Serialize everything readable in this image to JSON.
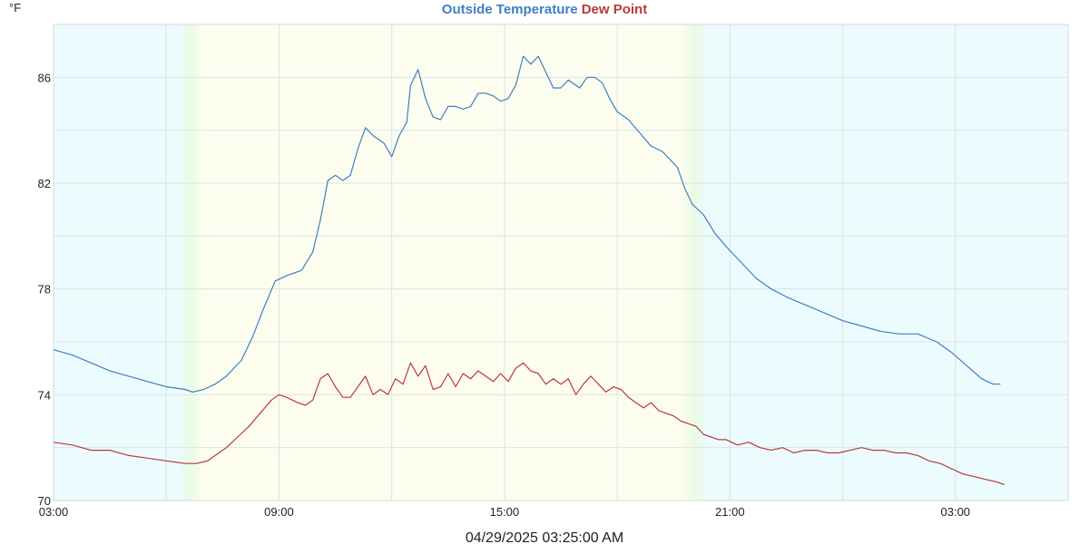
{
  "chart_data": {
    "type": "line",
    "title_parts": [
      {
        "text": "Outside Temperature",
        "color": "#3f7fbf"
      },
      {
        "text": "Dew Point",
        "color": "#b83a3a"
      }
    ],
    "ylabel": "°F",
    "footer": "04/29/2025 03:25:00 AM",
    "x_ticks": [
      {
        "hour": 0,
        "label": "03:00"
      },
      {
        "hour": 6,
        "label": "09:00"
      },
      {
        "hour": 12,
        "label": "15:00"
      },
      {
        "hour": 18,
        "label": "21:00"
      },
      {
        "hour": 24,
        "label": "03:00"
      }
    ],
    "x_range_hours": [
      0,
      27
    ],
    "y_ticks": [
      70,
      74,
      78,
      82,
      86
    ],
    "ylim": [
      70,
      88
    ],
    "grid": true,
    "background_bands": {
      "night_color": "#ecfbfd",
      "day_color": "#fdfdef",
      "sunrise_hours": [
        3.3,
        4.0
      ],
      "sunset_hours": [
        16.7,
        17.4
      ]
    },
    "series": [
      {
        "name": "Outside Temperature",
        "color": "#3f7fbf",
        "points": [
          [
            0.0,
            75.7
          ],
          [
            0.5,
            75.5
          ],
          [
            1.0,
            75.2
          ],
          [
            1.5,
            74.9
          ],
          [
            2.0,
            74.7
          ],
          [
            2.5,
            74.5
          ],
          [
            3.0,
            74.3
          ],
          [
            3.5,
            74.2
          ],
          [
            3.7,
            74.1
          ],
          [
            4.0,
            74.2
          ],
          [
            4.3,
            74.4
          ],
          [
            4.6,
            74.7
          ],
          [
            5.0,
            75.3
          ],
          [
            5.3,
            76.2
          ],
          [
            5.6,
            77.3
          ],
          [
            5.9,
            78.3
          ],
          [
            6.2,
            78.5
          ],
          [
            6.6,
            78.7
          ],
          [
            6.9,
            79.4
          ],
          [
            7.1,
            80.6
          ],
          [
            7.3,
            82.1
          ],
          [
            7.5,
            82.3
          ],
          [
            7.7,
            82.1
          ],
          [
            7.9,
            82.3
          ],
          [
            8.1,
            83.3
          ],
          [
            8.3,
            84.1
          ],
          [
            8.5,
            83.8
          ],
          [
            8.8,
            83.5
          ],
          [
            9.0,
            83.0
          ],
          [
            9.2,
            83.8
          ],
          [
            9.4,
            84.3
          ],
          [
            9.5,
            85.7
          ],
          [
            9.7,
            86.3
          ],
          [
            9.9,
            85.2
          ],
          [
            10.1,
            84.5
          ],
          [
            10.3,
            84.4
          ],
          [
            10.5,
            84.9
          ],
          [
            10.7,
            84.9
          ],
          [
            10.9,
            84.8
          ],
          [
            11.1,
            84.9
          ],
          [
            11.3,
            85.4
          ],
          [
            11.5,
            85.4
          ],
          [
            11.7,
            85.3
          ],
          [
            11.9,
            85.1
          ],
          [
            12.1,
            85.2
          ],
          [
            12.3,
            85.7
          ],
          [
            12.5,
            86.8
          ],
          [
            12.7,
            86.5
          ],
          [
            12.9,
            86.8
          ],
          [
            13.1,
            86.2
          ],
          [
            13.3,
            85.6
          ],
          [
            13.5,
            85.6
          ],
          [
            13.7,
            85.9
          ],
          [
            14.0,
            85.6
          ],
          [
            14.2,
            86.0
          ],
          [
            14.4,
            86.0
          ],
          [
            14.6,
            85.8
          ],
          [
            14.8,
            85.2
          ],
          [
            15.0,
            84.7
          ],
          [
            15.3,
            84.4
          ],
          [
            15.6,
            83.9
          ],
          [
            15.9,
            83.4
          ],
          [
            16.2,
            83.2
          ],
          [
            16.4,
            82.9
          ],
          [
            16.6,
            82.6
          ],
          [
            16.8,
            81.8
          ],
          [
            17.0,
            81.2
          ],
          [
            17.3,
            80.8
          ],
          [
            17.6,
            80.1
          ],
          [
            17.9,
            79.6
          ],
          [
            18.3,
            79.0
          ],
          [
            18.7,
            78.4
          ],
          [
            19.1,
            78.0
          ],
          [
            19.5,
            77.7
          ],
          [
            20.0,
            77.4
          ],
          [
            20.5,
            77.1
          ],
          [
            21.0,
            76.8
          ],
          [
            21.5,
            76.6
          ],
          [
            22.0,
            76.4
          ],
          [
            22.5,
            76.3
          ],
          [
            23.0,
            76.3
          ],
          [
            23.5,
            76.0
          ],
          [
            23.9,
            75.6
          ],
          [
            24.3,
            75.1
          ],
          [
            24.7,
            74.6
          ],
          [
            25.0,
            74.4
          ],
          [
            25.2,
            74.4
          ]
        ]
      },
      {
        "name": "Dew Point",
        "color": "#b83a3a",
        "points": [
          [
            0.0,
            72.2
          ],
          [
            0.5,
            72.1
          ],
          [
            1.0,
            71.9
          ],
          [
            1.5,
            71.9
          ],
          [
            2.0,
            71.7
          ],
          [
            2.5,
            71.6
          ],
          [
            3.0,
            71.5
          ],
          [
            3.5,
            71.4
          ],
          [
            3.8,
            71.4
          ],
          [
            4.1,
            71.5
          ],
          [
            4.4,
            71.8
          ],
          [
            4.6,
            72.0
          ],
          [
            4.9,
            72.4
          ],
          [
            5.2,
            72.8
          ],
          [
            5.5,
            73.3
          ],
          [
            5.8,
            73.8
          ],
          [
            6.0,
            74.0
          ],
          [
            6.2,
            73.9
          ],
          [
            6.5,
            73.7
          ],
          [
            6.7,
            73.6
          ],
          [
            6.9,
            73.8
          ],
          [
            7.1,
            74.6
          ],
          [
            7.3,
            74.8
          ],
          [
            7.5,
            74.3
          ],
          [
            7.7,
            73.9
          ],
          [
            7.9,
            73.9
          ],
          [
            8.1,
            74.3
          ],
          [
            8.3,
            74.7
          ],
          [
            8.5,
            74.0
          ],
          [
            8.7,
            74.2
          ],
          [
            8.9,
            74.0
          ],
          [
            9.1,
            74.6
          ],
          [
            9.3,
            74.4
          ],
          [
            9.5,
            75.2
          ],
          [
            9.7,
            74.7
          ],
          [
            9.9,
            75.1
          ],
          [
            10.1,
            74.2
          ],
          [
            10.3,
            74.3
          ],
          [
            10.5,
            74.8
          ],
          [
            10.7,
            74.3
          ],
          [
            10.9,
            74.8
          ],
          [
            11.1,
            74.6
          ],
          [
            11.3,
            74.9
          ],
          [
            11.5,
            74.7
          ],
          [
            11.7,
            74.5
          ],
          [
            11.9,
            74.8
          ],
          [
            12.1,
            74.5
          ],
          [
            12.3,
            75.0
          ],
          [
            12.5,
            75.2
          ],
          [
            12.7,
            74.9
          ],
          [
            12.9,
            74.8
          ],
          [
            13.1,
            74.4
          ],
          [
            13.3,
            74.6
          ],
          [
            13.5,
            74.4
          ],
          [
            13.7,
            74.6
          ],
          [
            13.9,
            74.0
          ],
          [
            14.1,
            74.4
          ],
          [
            14.3,
            74.7
          ],
          [
            14.5,
            74.4
          ],
          [
            14.7,
            74.1
          ],
          [
            14.9,
            74.3
          ],
          [
            15.1,
            74.2
          ],
          [
            15.3,
            73.9
          ],
          [
            15.5,
            73.7
          ],
          [
            15.7,
            73.5
          ],
          [
            15.9,
            73.7
          ],
          [
            16.1,
            73.4
          ],
          [
            16.3,
            73.3
          ],
          [
            16.5,
            73.2
          ],
          [
            16.7,
            73.0
          ],
          [
            16.9,
            72.9
          ],
          [
            17.1,
            72.8
          ],
          [
            17.3,
            72.5
          ],
          [
            17.5,
            72.4
          ],
          [
            17.7,
            72.3
          ],
          [
            17.9,
            72.3
          ],
          [
            18.2,
            72.1
          ],
          [
            18.5,
            72.2
          ],
          [
            18.8,
            72.0
          ],
          [
            19.1,
            71.9
          ],
          [
            19.4,
            72.0
          ],
          [
            19.7,
            71.8
          ],
          [
            20.0,
            71.9
          ],
          [
            20.3,
            71.9
          ],
          [
            20.6,
            71.8
          ],
          [
            20.9,
            71.8
          ],
          [
            21.2,
            71.9
          ],
          [
            21.5,
            72.0
          ],
          [
            21.8,
            71.9
          ],
          [
            22.1,
            71.9
          ],
          [
            22.4,
            71.8
          ],
          [
            22.7,
            71.8
          ],
          [
            23.0,
            71.7
          ],
          [
            23.3,
            71.5
          ],
          [
            23.6,
            71.4
          ],
          [
            23.9,
            71.2
          ],
          [
            24.2,
            71.0
          ],
          [
            24.5,
            70.9
          ],
          [
            24.8,
            70.8
          ],
          [
            25.1,
            70.7
          ],
          [
            25.3,
            70.6
          ]
        ]
      }
    ]
  }
}
